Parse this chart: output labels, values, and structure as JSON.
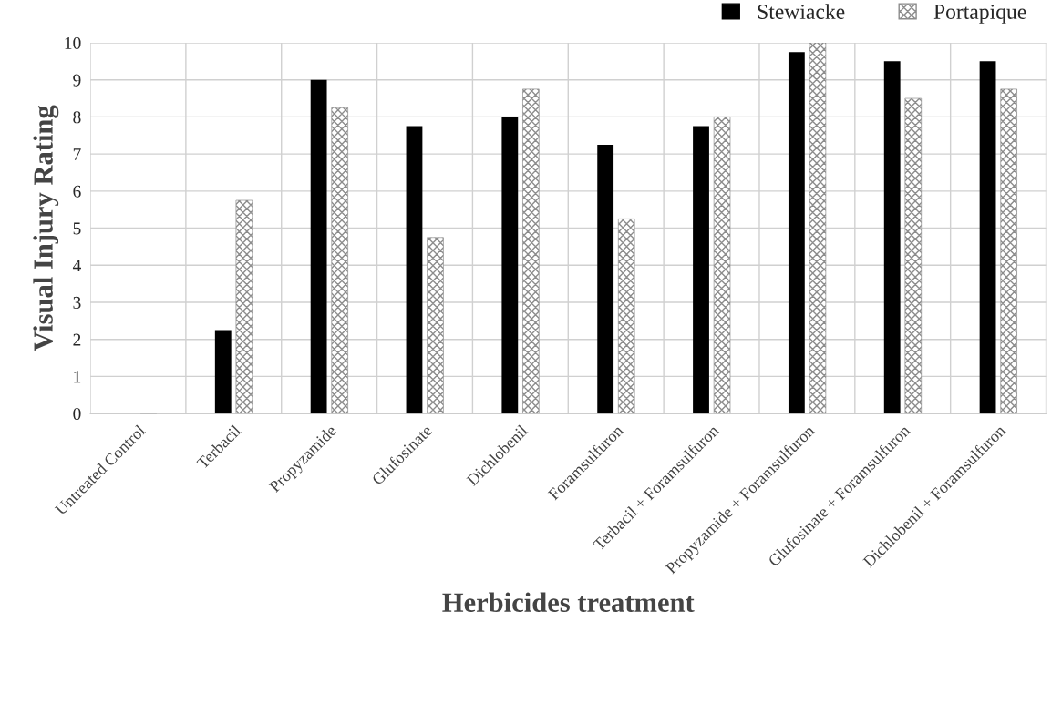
{
  "chart_data": {
    "type": "bar",
    "xlabel": "Herbicides treatment",
    "ylabel": "Visual Injury Rating",
    "categories": [
      "Untreated Control",
      "Terbacil",
      "Propyzamide",
      "Glufosinate",
      "Dichlobenil",
      "Foramsulfuron",
      "Terbacil + Foramsulfuron",
      "Propyzamide + Foramsulfuron",
      "Glufosinate + Foramsulfuron",
      "Dichlobenil + Foramsulfuron"
    ],
    "series": [
      {
        "name": "Stewiacke",
        "color": "#000000",
        "values": [
          0,
          2.25,
          9,
          7.75,
          8,
          7.25,
          7.75,
          9.75,
          9.5,
          9.5
        ]
      },
      {
        "name": "Portapique",
        "color": "#8c8c8c",
        "values": [
          0,
          5.75,
          8.25,
          4.75,
          8.75,
          5.25,
          8,
          10,
          8.5,
          8.75
        ]
      }
    ],
    "ylim": [
      0,
      10
    ],
    "yticks": [
      0,
      1,
      2,
      3,
      4,
      5,
      6,
      7,
      8,
      9,
      10
    ],
    "grid": true,
    "legend": "top right"
  }
}
